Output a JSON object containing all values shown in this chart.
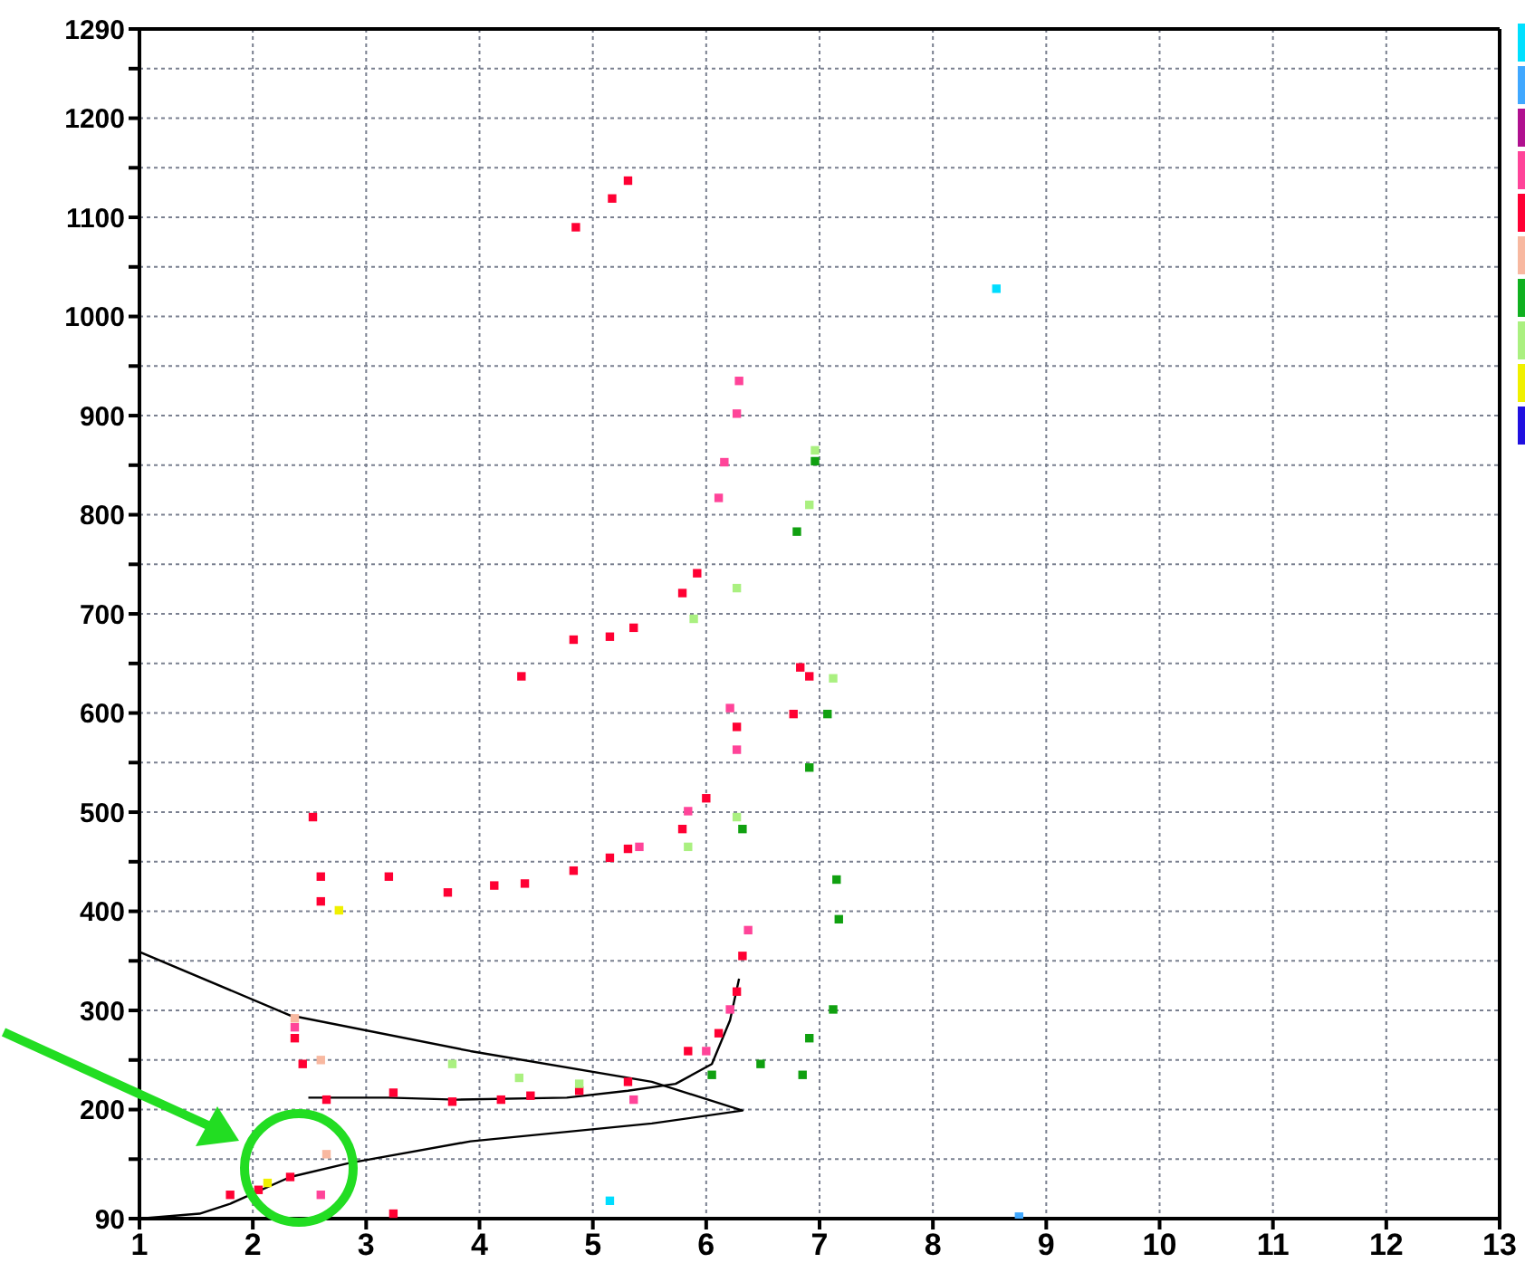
{
  "chart_data": {
    "type": "scatter",
    "xlim": [
      1,
      13
    ],
    "xticks": [
      1,
      2,
      3,
      4,
      5,
      6,
      7,
      8,
      9,
      10,
      11,
      12,
      13
    ],
    "ylim": [
      90,
      1290
    ],
    "yticks": [
      90,
      {
        "value": 150,
        "label": null
      },
      200,
      {
        "value": 250,
        "label": null
      },
      300,
      {
        "value": 350,
        "label": null
      },
      400,
      {
        "value": 450,
        "label": null
      },
      500,
      {
        "value": 550,
        "label": null
      },
      600,
      {
        "value": 650,
        "label": null
      },
      700,
      {
        "value": 750,
        "label": null
      },
      800,
      {
        "value": 850,
        "label": null
      },
      900,
      {
        "value": 950,
        "label": null
      },
      1000,
      {
        "value": 1050,
        "label": null
      },
      1100,
      {
        "value": 1150,
        "label": null
      },
      1200,
      {
        "value": 1250,
        "label": null
      },
      1290
    ],
    "grid": true,
    "marker": "square",
    "series": [
      {
        "color": "#ff0033",
        "x": [
          4.85,
          5.17,
          5.31,
          5.92,
          5.79,
          5.15,
          5.36,
          2.53,
          2.6,
          2.6,
          3.2,
          3.72,
          4.13,
          4.4,
          4.83,
          5.15,
          5.31,
          5.79,
          6.0,
          6.27,
          4.83,
          4.37,
          2.37,
          2.44,
          2.65,
          3.24,
          3.76,
          4.19,
          4.45,
          4.88,
          5.31,
          5.84,
          6.11,
          6.32,
          6.27,
          1.8,
          2.05,
          2.33,
          3.24,
          6.83,
          6.91,
          6.77
        ],
        "values": [
          1090,
          1119,
          1137,
          741,
          721,
          677,
          686,
          495,
          435,
          410,
          435,
          419,
          426,
          428,
          441,
          454,
          463,
          483,
          514,
          586,
          674,
          637,
          272,
          246,
          210,
          217,
          208,
          210,
          214,
          219,
          228,
          259,
          277,
          355,
          319,
          114,
          119,
          132,
          95,
          646,
          637,
          599
        ]
      },
      {
        "color": "#ff4499",
        "x": [
          2.37,
          6.0,
          6.21,
          6.37,
          5.84,
          6.21,
          6.27,
          2.6,
          5.41,
          5.36,
          6.27,
          6.16,
          6.29,
          6.11
        ],
        "values": [
          283,
          259,
          301,
          381,
          501,
          605,
          563,
          114,
          465,
          210,
          902,
          853,
          935,
          817
        ]
      },
      {
        "color": "#aaf080",
        "x": [
          3.76,
          4.35,
          4.88,
          5.84,
          6.27,
          7.12,
          6.96,
          6.91,
          6.27,
          5.89
        ],
        "values": [
          246,
          232,
          226,
          465,
          495,
          635,
          865,
          810,
          726,
          695
        ]
      },
      {
        "color": "#10a010",
        "x": [
          6.05,
          6.48,
          6.91,
          7.12,
          7.17,
          7.15,
          6.91,
          7.07,
          6.32,
          6.8,
          6.96,
          6.85
        ],
        "values": [
          235,
          246,
          272,
          301,
          392,
          432,
          545,
          599,
          483,
          783,
          854,
          235
        ]
      },
      {
        "color": "#f8b8a0",
        "x": [
          2.65,
          2.37,
          2.6
        ],
        "values": [
          155,
          292,
          250
        ]
      },
      {
        "color": "#f0f000",
        "x": [
          2.76,
          2.13
        ],
        "values": [
          401,
          126
        ]
      },
      {
        "color": "#00ddff",
        "x": [
          8.56,
          5.15
        ],
        "values": [
          1028,
          108
        ]
      },
      {
        "color": "#40a8ff",
        "x": [
          8.76
        ],
        "values": [
          92
        ]
      },
      {
        "type": "line",
        "marker": "none",
        "color": "#000000",
        "x": [
          1.0,
          2.33,
          3.92,
          5.52,
          6.32,
          5.52,
          3.92,
          2.85,
          2.33,
          1.8,
          1.53,
          1.0
        ],
        "values": [
          359,
          295,
          259,
          228,
          199,
          186,
          168,
          146,
          132,
          105,
          95,
          90
        ]
      },
      {
        "type": "line",
        "marker": "none",
        "color": "#000000",
        "x": [
          2.49,
          3.2,
          3.8,
          4.77,
          5.31,
          5.73,
          6.05,
          6.21,
          6.29
        ],
        "values": [
          212,
          212,
          210,
          212,
          219,
          226,
          246,
          290,
          332
        ]
      }
    ]
  }
}
